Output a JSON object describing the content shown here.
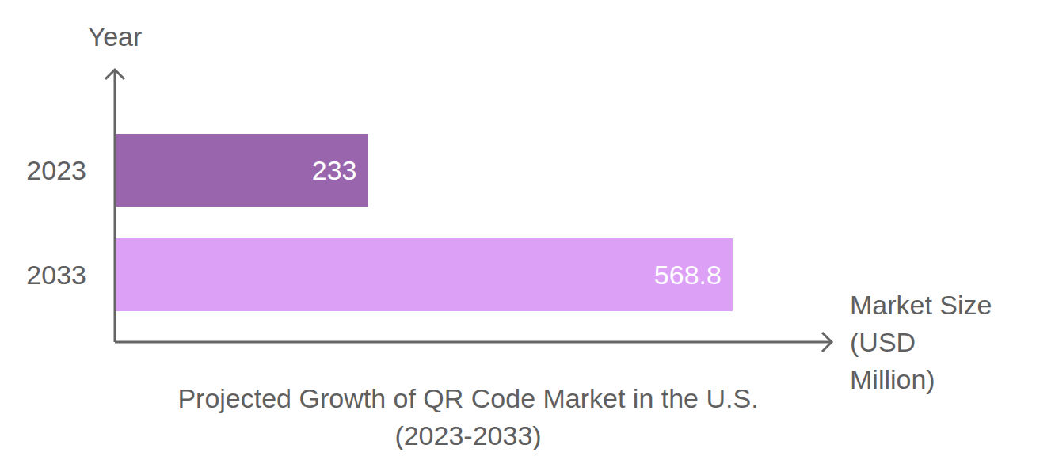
{
  "chart_data": {
    "type": "bar",
    "title": "Projected Growth of QR Code Market in the U.S. (2023-2033)",
    "x_label": "Market Size (USD Million)",
    "y_label": "Year",
    "categories": [
      "2023",
      "2033"
    ],
    "values": [
      233,
      568.8
    ],
    "colors": [
      "#9966ad",
      "#dca0f7"
    ],
    "orientation": "horizontal",
    "xlim": [
      0,
      660
    ],
    "data_labels": true,
    "tick_labels": "y",
    "grid": false
  }
}
